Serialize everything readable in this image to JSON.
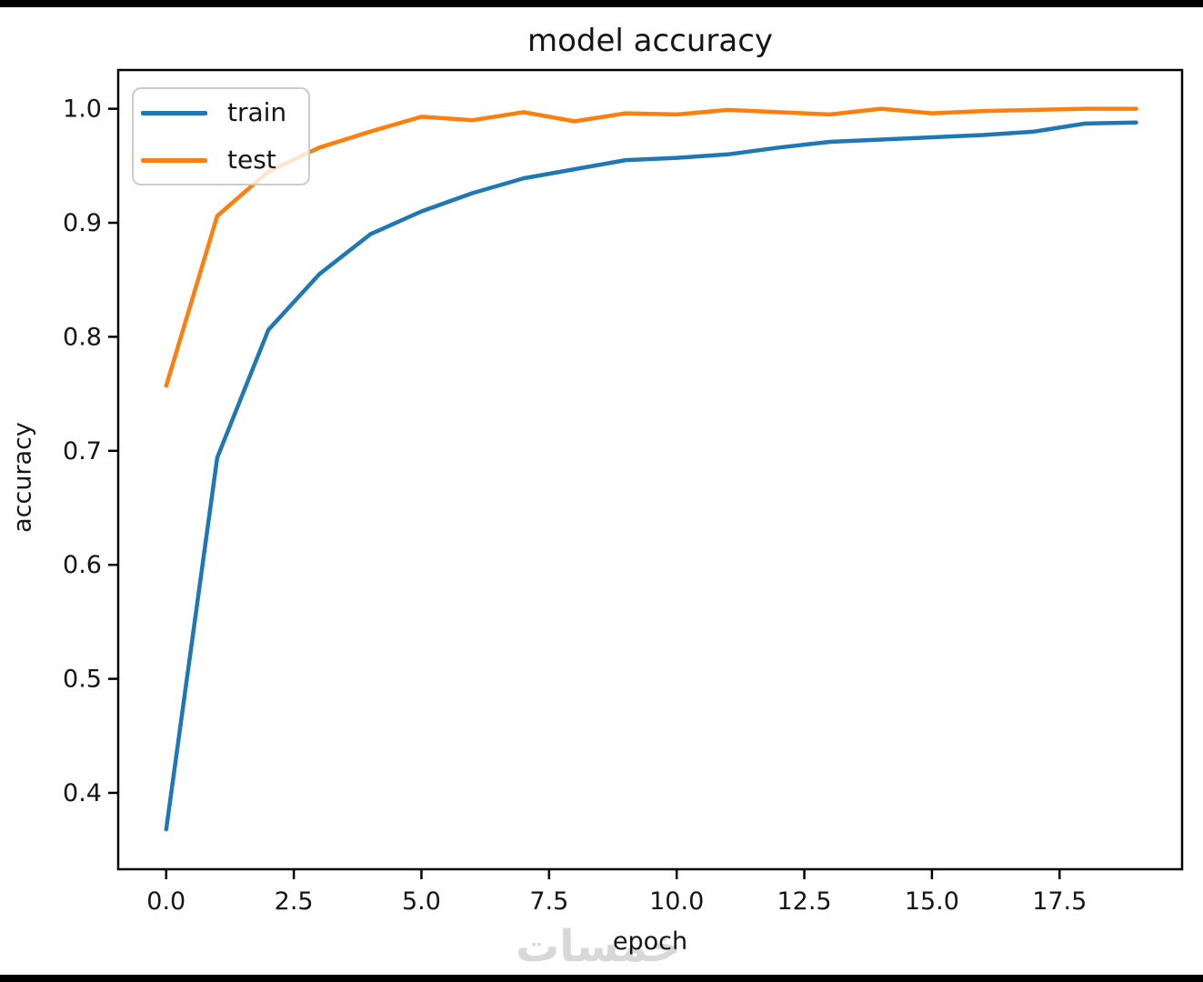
{
  "chart_data": {
    "type": "line",
    "title": "model accuracy",
    "xlabel": "epoch",
    "ylabel": "accuracy",
    "x": [
      0,
      1,
      2,
      3,
      4,
      5,
      6,
      7,
      8,
      9,
      10,
      11,
      12,
      13,
      14,
      15,
      16,
      17,
      18,
      19
    ],
    "series": [
      {
        "name": "train",
        "color": "#1f77b4",
        "values": [
          0.368,
          0.694,
          0.806,
          0.855,
          0.89,
          0.91,
          0.926,
          0.939,
          0.947,
          0.955,
          0.957,
          0.96,
          0.966,
          0.971,
          0.973,
          0.975,
          0.977,
          0.98,
          0.987,
          0.988
        ]
      },
      {
        "name": "test",
        "color": "#ff7f0e",
        "values": [
          0.757,
          0.906,
          0.945,
          0.966,
          0.98,
          0.993,
          0.99,
          0.997,
          0.989,
          0.996,
          0.995,
          0.999,
          0.997,
          0.995,
          1.0,
          0.996,
          0.998,
          0.999,
          1.0,
          1.0
        ]
      }
    ],
    "xlim": [
      -0.94,
      19.9
    ],
    "ylim": [
      0.333,
      1.034
    ],
    "xticks": [
      0,
      2.5,
      5,
      7.5,
      10,
      12.5,
      15,
      17.5
    ],
    "xtick_labels": [
      "0.0",
      "2.5",
      "5.0",
      "7.5",
      "10.0",
      "12.5",
      "15.0",
      "17.5"
    ],
    "yticks": [
      0.4,
      0.5,
      0.6,
      0.7,
      0.8,
      0.9,
      1.0
    ],
    "ytick_labels": [
      "0.4",
      "0.5",
      "0.6",
      "0.7",
      "0.8",
      "0.9",
      "1.0"
    ],
    "grid": false,
    "legend_position": "upper left",
    "axis_color": "#000000",
    "line_width": 4.5
  },
  "watermark": {
    "text": "خمسات",
    "color": "#d8d8d8"
  }
}
